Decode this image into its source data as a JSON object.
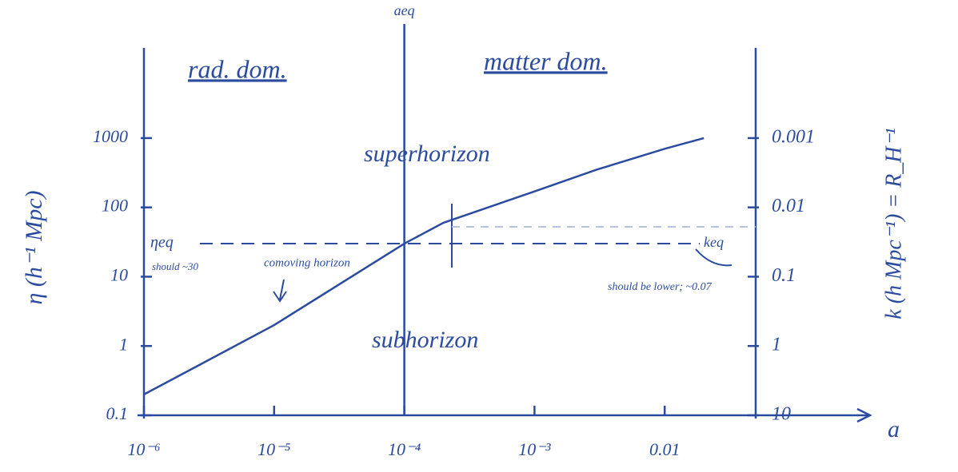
{
  "chart_data": {
    "type": "line",
    "x": [
      1e-06,
      1e-05,
      0.0001,
      0.0002,
      0.001,
      0.003,
      0.01,
      0.02
    ],
    "values": [
      0.2,
      2,
      30,
      60,
      170,
      350,
      700,
      1000
    ],
    "color": "#2b4c9e",
    "xscale": "log",
    "yscale": "log",
    "y2scale": "log",
    "xlim": [
      1e-06,
      0.05
    ],
    "xticks": [
      {
        "value": 1e-06,
        "label": "10⁻⁶"
      },
      {
        "value": 1e-05,
        "label": "10⁻⁵"
      },
      {
        "value": 0.0001,
        "label": "10⁻⁴"
      },
      {
        "value": 0.001,
        "label": "10⁻³"
      },
      0.01
    ],
    "ylim": [
      0.1,
      20000
    ],
    "yticks": [
      0.1,
      1,
      10,
      100,
      1000
    ],
    "y2lim": [
      10,
      5e-05
    ],
    "y2ticks": [
      10,
      1,
      0.1,
      0.01,
      0.001
    ],
    "xlabel": "a",
    "ylabel": "η (h⁻¹ Mpc)",
    "y2label": "k (h Mpc⁻¹) = R_H⁻¹",
    "vline": {
      "x": 0.0001,
      "label": "aeq"
    },
    "hline": {
      "y": 30,
      "label": "ηeq"
    },
    "annotations": [
      "rad. dom.",
      "matter dom.",
      "superhorizon",
      "subhorizon",
      "comoving horizon",
      "should ~30",
      "keq",
      "should be lower; ~0.07"
    ]
  }
}
